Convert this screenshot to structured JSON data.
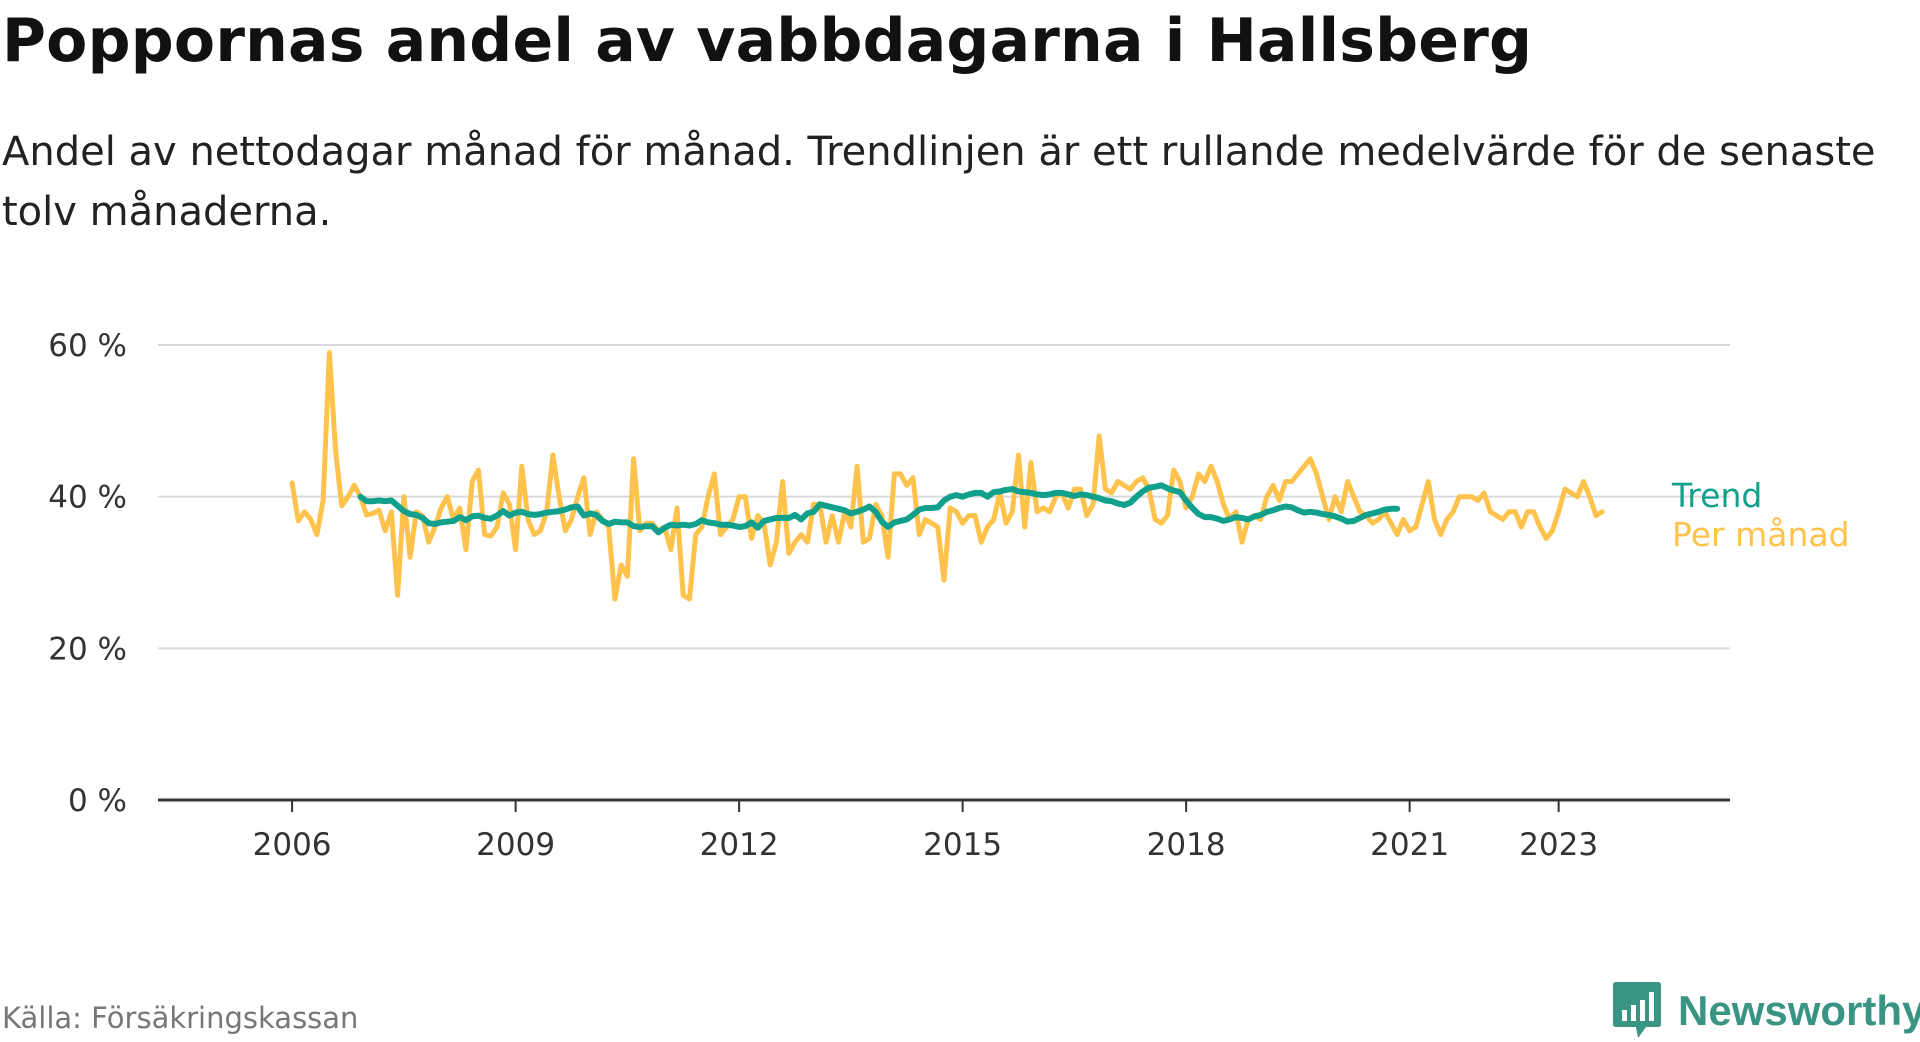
{
  "header": {
    "title": "Poppornas andel av vabbdagarna i Hallsberg",
    "subtitle": "Andel av nettodagar månad för månad. Trendlinjen är ett rullande medelvärde för de senaste tolv månaderna."
  },
  "footer": {
    "source": "Källa: Försäkringskassan",
    "brand": "Newsworthy"
  },
  "colors": {
    "trend": "#11a08c",
    "monthly": "#ffc34d",
    "grid": "#d9d9d9",
    "axis": "#333333",
    "brand": "#3a9484"
  },
  "chart_data": {
    "type": "line",
    "title": "Poppornas andel av vabbdagarna i Hallsberg",
    "subtitle": "Andel av nettodagar månad för månad. Trendlinjen är ett rullande medelvärde för de senaste tolv månaderna.",
    "xlabel": "",
    "ylabel": "",
    "ylim": [
      0,
      60
    ],
    "xlim": [
      2004.2,
      2025.3
    ],
    "y_ticks": [
      0,
      20,
      40,
      60
    ],
    "y_tick_labels": [
      "0 %",
      "20 %",
      "40 %",
      "60 %"
    ],
    "x_ticks": [
      2006,
      2009,
      2012,
      2015,
      2018,
      2021,
      2023
    ],
    "x_tick_labels": [
      "2006",
      "2009",
      "2012",
      "2015",
      "2018",
      "2021",
      "2023"
    ],
    "grid": true,
    "legend": "direct labels at right end of lines",
    "series": [
      {
        "name": "Per månad",
        "color": "#ffc34d",
        "x_start": 2006.0,
        "x_step_months": 1,
        "values": [
          41.8,
          36.8,
          38,
          37,
          35,
          39.5,
          59,
          46,
          38.8,
          40,
          41.5,
          40,
          37.6,
          37.8,
          38.2,
          35.5,
          38,
          27,
          40,
          32,
          38,
          37.5,
          34,
          36,
          38.5,
          40,
          37,
          38.5,
          33,
          42,
          43.5,
          35,
          34.8,
          36,
          40.5,
          39,
          33,
          44,
          37,
          35,
          35.5,
          38,
          45.5,
          40,
          35.5,
          37,
          40,
          42.5,
          35,
          38,
          37,
          36,
          26.5,
          31,
          29.5,
          45,
          35.5,
          36.5,
          36.5,
          35.5,
          36,
          33,
          38.5,
          27,
          26.5,
          35,
          36,
          40,
          43,
          35,
          36,
          37,
          40,
          40,
          34.5,
          37.5,
          36.5,
          31,
          34,
          42,
          32.5,
          34,
          35,
          34,
          39,
          39,
          34,
          37.5,
          34,
          38,
          36,
          44,
          34,
          34.5,
          39,
          37.5,
          32,
          43,
          43,
          41.5,
          42.5,
          35,
          37,
          36.5,
          36,
          29,
          38.5,
          38,
          36.5,
          37.5,
          37.5,
          34,
          36,
          37,
          40.5,
          36.5,
          38,
          45.5,
          36,
          44.5,
          38,
          38.5,
          38,
          40,
          40.5,
          38.5,
          41,
          41,
          37.5,
          39,
          48,
          41,
          40.5,
          42,
          41.5,
          41,
          42,
          42.5,
          41,
          37,
          36.5,
          37.5,
          43.5,
          42,
          38.5,
          40,
          43,
          42,
          44,
          42,
          39,
          37,
          38,
          34,
          37,
          37.5,
          37,
          40,
          41.5,
          39.5,
          42,
          42,
          43,
          44,
          45,
          43,
          40,
          37,
          40,
          38,
          42,
          40,
          38,
          37.5,
          36.5,
          37,
          38,
          36.5,
          35,
          37,
          35.5,
          36,
          39,
          42,
          37,
          35,
          37,
          38,
          40,
          40,
          40,
          39.5,
          40.5,
          38,
          37.5,
          37,
          38,
          38,
          36,
          38,
          38,
          36,
          34.5,
          35.5,
          38,
          41,
          40.5,
          40,
          42,
          40,
          37.5,
          38
        ],
        "labels_visible": {
          "series_label": "Per månad"
        }
      },
      {
        "name": "Trend",
        "color": "#11a08c",
        "x_start": 2006.917,
        "x_step_months": 1,
        "values": [
          40,
          39.4,
          39.4,
          39.5,
          39.4,
          39.5,
          38.8,
          38.1,
          37.7,
          37.6,
          37.2,
          36.5,
          36.4,
          36.6,
          36.7,
          36.8,
          37.3,
          36.9,
          37.4,
          37.5,
          37.2,
          37.1,
          37.5,
          38.1,
          37.5,
          37.9,
          38,
          37.7,
          37.6,
          37.7,
          37.9,
          38,
          38.1,
          38.3,
          38.6,
          38.7,
          37.5,
          37.8,
          37.6,
          36.8,
          36.4,
          36.7,
          36.6,
          36.6,
          36.1,
          36,
          36.1,
          36.1,
          35.3,
          35.9,
          36.3,
          36.2,
          36.3,
          36.2,
          36.4,
          36.9,
          36.6,
          36.5,
          36.3,
          36.3,
          36.2,
          36,
          36.1,
          36.6,
          35.9,
          36.8,
          37,
          37.2,
          37.2,
          37.2,
          37.6,
          37,
          37.8,
          38,
          39,
          38.8,
          38.6,
          38.4,
          38.2,
          37.8,
          38,
          38.3,
          38.7,
          38,
          36.7,
          36,
          36.6,
          36.8,
          37,
          37.6,
          38.3,
          38.5,
          38.5,
          38.6,
          39.5,
          40,
          40.2,
          40,
          40.3,
          40.5,
          40.5,
          40,
          40.6,
          40.7,
          40.9,
          41,
          40.7,
          40.6,
          40.5,
          40.3,
          40.2,
          40.3,
          40.5,
          40.5,
          40.3,
          40.1,
          40.3,
          40.2,
          40,
          39.8,
          39.5,
          39.4,
          39.1,
          38.9,
          39.2,
          40,
          40.7,
          41.2,
          41.3,
          41.5,
          41.1,
          40.8,
          40.6,
          39.5,
          38.5,
          37.7,
          37.3,
          37.3,
          37.1,
          36.8,
          37,
          37.3,
          37.2,
          37,
          37.4,
          37.6,
          38,
          38.2,
          38.5,
          38.7,
          38.6,
          38.2,
          37.9,
          38,
          37.9,
          37.7,
          37.6,
          37.4,
          37.1,
          36.7,
          36.8,
          37.2,
          37.6,
          37.8,
          38,
          38.3,
          38.4,
          38.4
        ]
      }
    ]
  }
}
